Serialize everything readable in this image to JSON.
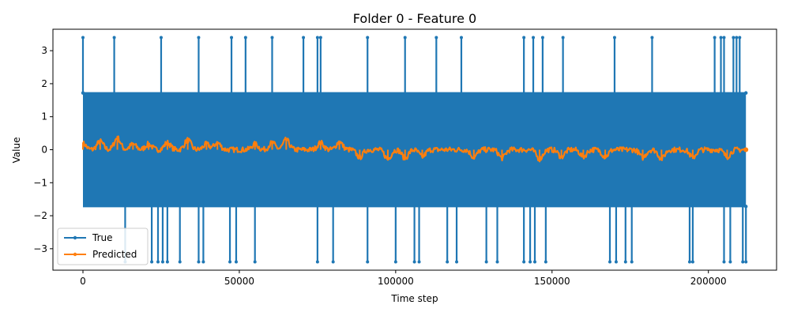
{
  "chart_data": {
    "type": "line",
    "title": "Folder 0 - Feature 0",
    "xlabel": "Time step",
    "ylabel": "Value",
    "xlim": [
      -9600,
      221800
    ],
    "ylim": [
      -3.65,
      3.65
    ],
    "x_ticks": [
      0,
      50000,
      100000,
      150000,
      200000
    ],
    "x_tick_labels": [
      "0",
      "50000",
      "100000",
      "150000",
      "200000"
    ],
    "y_ticks": [
      -3,
      -2,
      -1,
      0,
      1,
      2,
      3
    ],
    "y_tick_labels": [
      "−3",
      "−2",
      "−1",
      "0",
      "1",
      "2",
      "3"
    ],
    "legend_position": "lower-left",
    "x_range": [
      0,
      212000
    ],
    "series": [
      {
        "name": "True",
        "color": "#1f77b4",
        "marker": "circle",
        "band": [
          -1.72,
          1.72
        ],
        "spikes_high": [
          {
            "x": 0,
            "y": 3.4
          },
          {
            "x": 10000,
            "y": 3.4
          },
          {
            "x": 25000,
            "y": 3.4
          },
          {
            "x": 37000,
            "y": 3.4
          },
          {
            "x": 47500,
            "y": 3.4
          },
          {
            "x": 52000,
            "y": 3.4
          },
          {
            "x": 60500,
            "y": 3.4
          },
          {
            "x": 70500,
            "y": 3.4
          },
          {
            "x": 75000,
            "y": 3.4
          },
          {
            "x": 76000,
            "y": 3.4
          },
          {
            "x": 91000,
            "y": 3.4
          },
          {
            "x": 103000,
            "y": 3.4
          },
          {
            "x": 113000,
            "y": 3.4
          },
          {
            "x": 121000,
            "y": 3.4
          },
          {
            "x": 141000,
            "y": 3.4
          },
          {
            "x": 144000,
            "y": 3.4
          },
          {
            "x": 147000,
            "y": 3.4
          },
          {
            "x": 153500,
            "y": 3.4
          },
          {
            "x": 170000,
            "y": 3.4
          },
          {
            "x": 182000,
            "y": 3.4
          },
          {
            "x": 202000,
            "y": 3.4
          },
          {
            "x": 204000,
            "y": 3.4
          },
          {
            "x": 205000,
            "y": 3.4
          },
          {
            "x": 208000,
            "y": 3.4
          },
          {
            "x": 209000,
            "y": 3.4
          },
          {
            "x": 210000,
            "y": 3.4
          }
        ],
        "spikes_low": [
          {
            "x": 13500,
            "y": -3.4
          },
          {
            "x": 22000,
            "y": -3.4
          },
          {
            "x": 24000,
            "y": -3.4
          },
          {
            "x": 25500,
            "y": -3.4
          },
          {
            "x": 27000,
            "y": -3.4
          },
          {
            "x": 31000,
            "y": -3.4
          },
          {
            "x": 37000,
            "y": -3.4
          },
          {
            "x": 38500,
            "y": -3.4
          },
          {
            "x": 47000,
            "y": -3.4
          },
          {
            "x": 49000,
            "y": -3.4
          },
          {
            "x": 55000,
            "y": -3.4
          },
          {
            "x": 75000,
            "y": -3.4
          },
          {
            "x": 80000,
            "y": -3.4
          },
          {
            "x": 91000,
            "y": -3.4
          },
          {
            "x": 100000,
            "y": -3.4
          },
          {
            "x": 106000,
            "y": -3.4
          },
          {
            "x": 107500,
            "y": -3.4
          },
          {
            "x": 116500,
            "y": -3.4
          },
          {
            "x": 119500,
            "y": -3.4
          },
          {
            "x": 129000,
            "y": -3.4
          },
          {
            "x": 132500,
            "y": -3.4
          },
          {
            "x": 141000,
            "y": -3.4
          },
          {
            "x": 143000,
            "y": -3.4
          },
          {
            "x": 144500,
            "y": -3.4
          },
          {
            "x": 148000,
            "y": -3.4
          },
          {
            "x": 168500,
            "y": -3.4
          },
          {
            "x": 170500,
            "y": -3.4
          },
          {
            "x": 173500,
            "y": -3.4
          },
          {
            "x": 175500,
            "y": -3.4
          },
          {
            "x": 194000,
            "y": -3.4
          },
          {
            "x": 195000,
            "y": -3.4
          },
          {
            "x": 205000,
            "y": -3.4
          },
          {
            "x": 207000,
            "y": -3.4
          },
          {
            "x": 211000,
            "y": -3.4
          },
          {
            "x": 212000,
            "y": -3.4
          }
        ]
      },
      {
        "name": "Predicted",
        "color": "#ff7f0e",
        "marker": "circle",
        "baseline": 0.0,
        "noise_amplitude": 0.08,
        "peaks": [
          {
            "x": 0,
            "y": 0.22
          },
          {
            "x": 5500,
            "y": 0.3
          },
          {
            "x": 11000,
            "y": 0.42
          },
          {
            "x": 16000,
            "y": 0.2
          },
          {
            "x": 21000,
            "y": 0.2
          },
          {
            "x": 27000,
            "y": 0.25
          },
          {
            "x": 33500,
            "y": 0.35
          },
          {
            "x": 39500,
            "y": 0.2
          },
          {
            "x": 43000,
            "y": 0.25
          },
          {
            "x": 55000,
            "y": 0.2
          },
          {
            "x": 60500,
            "y": 0.25
          },
          {
            "x": 65000,
            "y": 0.35
          },
          {
            "x": 76000,
            "y": 0.25
          },
          {
            "x": 82000,
            "y": 0.28
          }
        ],
        "troughs": [
          {
            "x": 88500,
            "y": -0.27
          },
          {
            "x": 97500,
            "y": -0.33
          },
          {
            "x": 103000,
            "y": -0.3
          },
          {
            "x": 108500,
            "y": -0.25
          },
          {
            "x": 125000,
            "y": -0.27
          },
          {
            "x": 134000,
            "y": -0.3
          },
          {
            "x": 146000,
            "y": -0.33
          },
          {
            "x": 153000,
            "y": -0.25
          },
          {
            "x": 160000,
            "y": -0.25
          },
          {
            "x": 167000,
            "y": -0.25
          },
          {
            "x": 179000,
            "y": -0.28
          },
          {
            "x": 185000,
            "y": -0.32
          },
          {
            "x": 195000,
            "y": -0.28
          },
          {
            "x": 206000,
            "y": -0.25
          }
        ]
      }
    ]
  }
}
